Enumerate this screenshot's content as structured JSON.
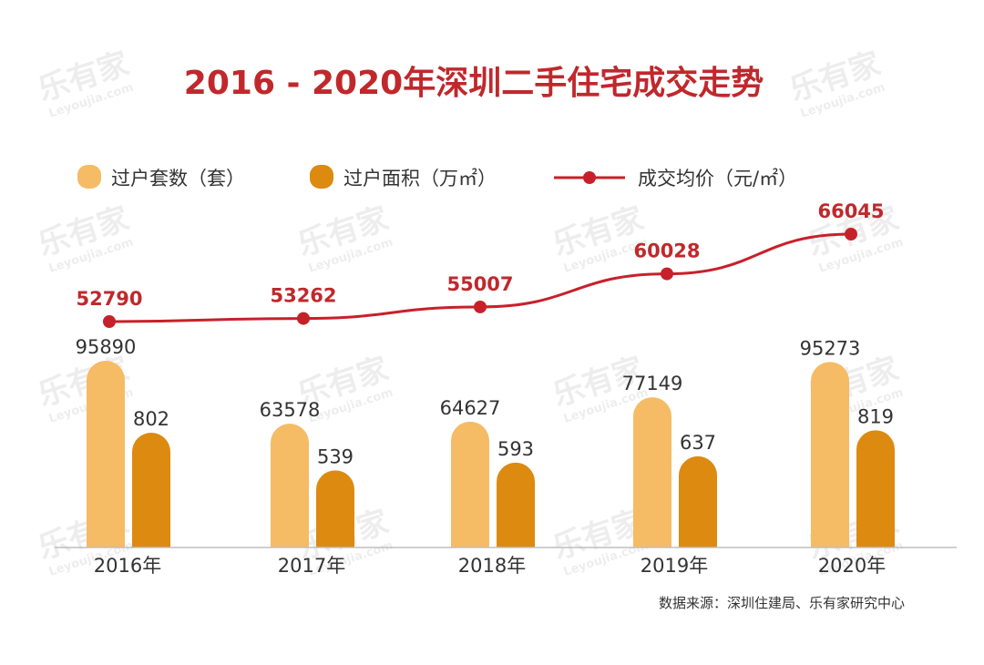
{
  "chart_data": {
    "type": "bar",
    "title": "2016 - 2020年深圳二手住宅成交走势",
    "categories": [
      "2016年",
      "2017年",
      "2018年",
      "2019年",
      "2020年"
    ],
    "series": [
      {
        "name": "过户套数（套）",
        "type": "bar",
        "values": [
          95890,
          63578,
          64627,
          77149,
          95273
        ]
      },
      {
        "name": "过户面积（万㎡）",
        "type": "bar",
        "values": [
          802,
          539,
          593,
          637,
          819
        ]
      },
      {
        "name": "成交均价（元/㎡）",
        "type": "line",
        "values": [
          52790,
          53262,
          55007,
          60028,
          66045
        ]
      }
    ],
    "source": "数据来源：深圳住建局、乐有家研究中心",
    "legend_position": "top-left",
    "grid": false
  },
  "watermark": {
    "brand": "乐有家",
    "sub": "Leyoujia.com"
  },
  "colors": {
    "title": "#c0282c",
    "bar_count": "#f6bb65",
    "bar_area": "#dd8a10",
    "line": "#c8202a",
    "line_label": "#c0282c",
    "text": "#333333",
    "axis": "#bfbfbf"
  }
}
